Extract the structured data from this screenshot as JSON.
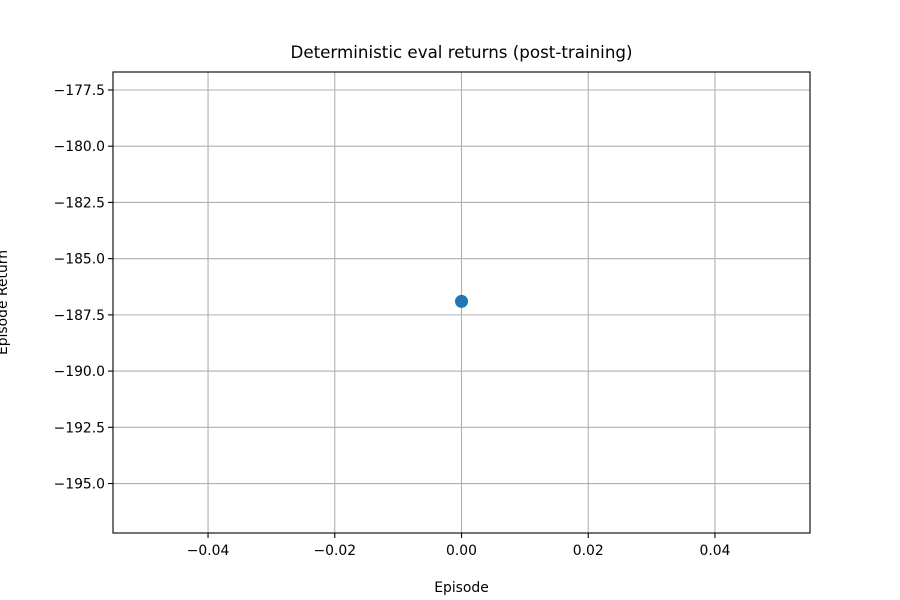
{
  "chart_data": {
    "type": "scatter",
    "title": "Deterministic eval returns (post-training)",
    "xlabel": "Episode",
    "ylabel": "Episode Return",
    "xlim": [
      -0.055,
      0.055
    ],
    "ylim": [
      -197.2,
      -176.7
    ],
    "x_ticks": [
      -0.04,
      -0.02,
      0.0,
      0.02,
      0.04
    ],
    "x_tick_labels": [
      "−0.04",
      "−0.02",
      "0.00",
      "0.02",
      "0.04"
    ],
    "y_ticks": [
      -177.5,
      -180.0,
      -182.5,
      -185.0,
      -187.5,
      -190.0,
      -192.5,
      -195.0
    ],
    "y_tick_labels": [
      "−177.5",
      "−180.0",
      "−182.5",
      "−185.0",
      "−187.5",
      "−190.0",
      "−192.5",
      "−195.0"
    ],
    "grid": true,
    "series": [
      {
        "color": "#1f77b4",
        "x": [
          0
        ],
        "y": [
          -186.9
        ]
      }
    ]
  }
}
